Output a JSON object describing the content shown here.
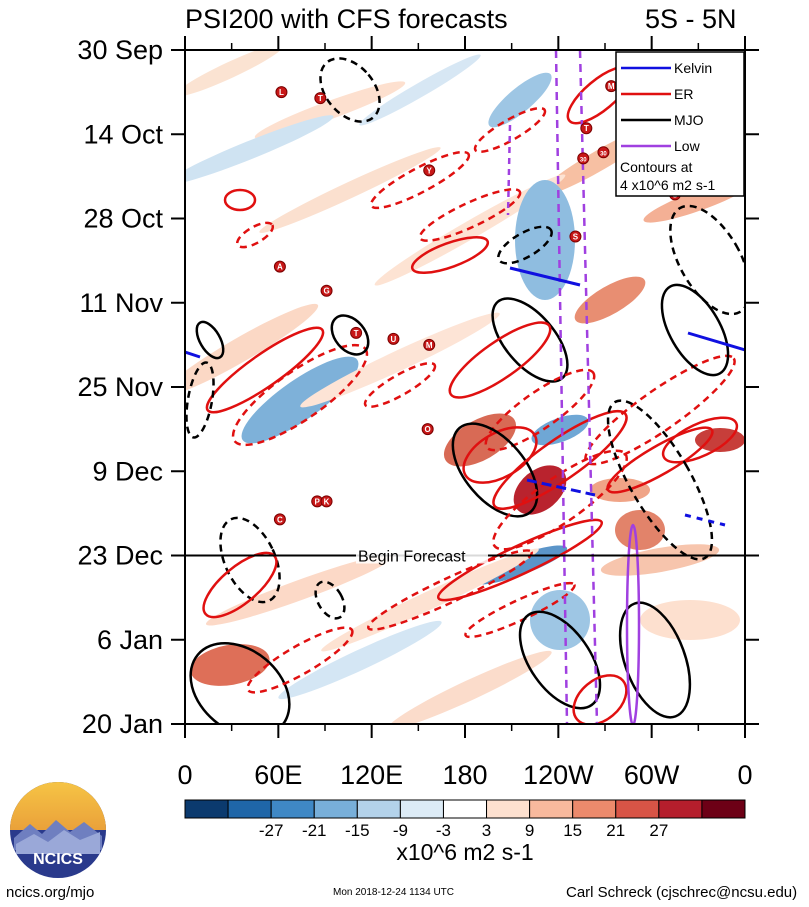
{
  "header": {
    "title": "PSI200 with CFS forecasts",
    "region": "5S - 5N"
  },
  "footer": {
    "site": "ncics.org/mjo",
    "timestamp": "Mon 2018-12-24 1134 UTC",
    "author": "Carl Schreck (cjschrec@ncsu.edu)",
    "logo_text": "NCICS"
  },
  "chart_data": {
    "type": "heatmap",
    "title": "PSI200 with CFS forecasts",
    "subtitle": "5S - 5N",
    "y_tick_labels": [
      "30 Sep",
      "14 Oct",
      "28 Oct",
      "11 Nov",
      "25 Nov",
      "9 Dec",
      "23 Dec",
      "6 Jan",
      "20 Jan"
    ],
    "x_tick_labels": [
      "0",
      "60E",
      "120E",
      "180",
      "120W",
      "60W",
      "0"
    ],
    "x_range_deg": [
      0,
      360
    ],
    "forecast_label": "Begin Forecast",
    "forecast_start_day": 84,
    "colorbar": {
      "unit_label": "x10^6 m2 s-1",
      "tick_labels": [
        "-27",
        "-21",
        "-15",
        "-9",
        "-3",
        "3",
        "9",
        "15",
        "21",
        "27"
      ],
      "colors": [
        "#0b3a6e",
        "#1f66a8",
        "#3f88c5",
        "#78afd9",
        "#b3d2ea",
        "#dcebf6",
        "#ffffff",
        "#fde0cf",
        "#f8b99d",
        "#ec8a6c",
        "#d85446",
        "#b51e2c",
        "#6d0016"
      ]
    },
    "legend": {
      "position": "top-right",
      "entries": [
        {
          "name": "Kelvin",
          "color": "#1010e0"
        },
        {
          "name": "ER",
          "color": "#e01010"
        },
        {
          "name": "MJO",
          "color": "#000000"
        },
        {
          "name": "Low",
          "color": "#a040e0"
        }
      ],
      "note_lines": [
        "Contours at",
        "4 x10^6 m2 s-1"
      ]
    },
    "storm_markers": [
      {
        "label": "L",
        "lon": 62,
        "day": 7
      },
      {
        "label": "T",
        "lon": 87,
        "day": 8
      },
      {
        "label": "M",
        "lon": 274,
        "day": 6
      },
      {
        "label": "T",
        "lon": 258,
        "day": 13
      },
      {
        "label": "Y",
        "lon": 157,
        "day": 20
      },
      {
        "label": "30",
        "lon": 256,
        "day": 18
      },
      {
        "label": "30",
        "lon": 269,
        "day": 17
      },
      {
        "label": "O",
        "lon": 315,
        "day": 24
      },
      {
        "label": "S",
        "lon": 251,
        "day": 31
      },
      {
        "label": "A",
        "lon": 61,
        "day": 36
      },
      {
        "label": "G",
        "lon": 91,
        "day": 40
      },
      {
        "label": "T",
        "lon": 110,
        "day": 47
      },
      {
        "label": "U",
        "lon": 134,
        "day": 48
      },
      {
        "label": "M",
        "lon": 157,
        "day": 49
      },
      {
        "label": "O",
        "lon": 156,
        "day": 63
      },
      {
        "label": "P",
        "lon": 85,
        "day": 75
      },
      {
        "label": "K",
        "lon": 91,
        "day": 75
      },
      {
        "label": "C",
        "lon": 61,
        "day": 78
      }
    ],
    "grid": false
  }
}
